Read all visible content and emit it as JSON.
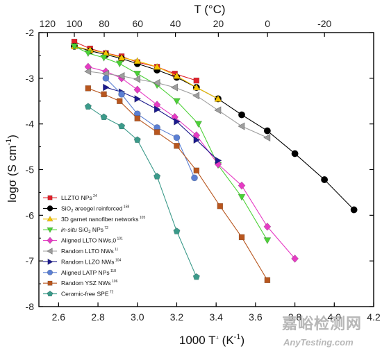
{
  "chart_data": {
    "type": "scatter",
    "xlabel_main": "1000 T",
    "xlabel_sup": "-1",
    "xlabel_unit": " (K",
    "xlabel_unit_sup": "-1",
    "xlabel_end": ")",
    "ylabel_main": "logσ (S cm",
    "ylabel_sup": "-1",
    "ylabel_end": ")",
    "top_label": "T (°C)",
    "xlim": [
      2.5,
      4.2
    ],
    "ylim": [
      -8,
      -2
    ],
    "x_ticks": [
      "2.6",
      "2.8",
      "3.0",
      "3.2",
      "3.4",
      "3.6",
      "3.8",
      "4.0",
      "4.2"
    ],
    "y_ticks": [
      "-2",
      "-3",
      "-4",
      "-5",
      "-6",
      "-7",
      "-8"
    ],
    "top_ticks": [
      "120",
      "100",
      "80",
      "60",
      "40",
      "20",
      "0",
      "-20"
    ],
    "legend_position": "bottom-left",
    "series": [
      {
        "name": "LLZTO NPs",
        "ref": "24",
        "color": "#e0202a",
        "marker": "square",
        "x": [
          2.68,
          2.76,
          2.84,
          2.92,
          3.0,
          3.1,
          3.19,
          3.3
        ],
        "y": [
          -2.2,
          -2.35,
          -2.45,
          -2.52,
          -2.65,
          -2.75,
          -2.9,
          -3.05
        ]
      },
      {
        "name": "SiO",
        "sub": "2",
        "name2": " areogel reinforced",
        "ref": "158",
        "color": "#000000",
        "marker": "circle",
        "x": [
          2.68,
          2.76,
          2.84,
          2.92,
          3.0,
          3.1,
          3.2,
          3.3,
          3.41,
          3.53,
          3.66,
          3.8,
          3.95,
          4.1
        ],
        "y": [
          -2.3,
          -2.4,
          -2.48,
          -2.57,
          -2.68,
          -2.82,
          -2.98,
          -3.2,
          -3.45,
          -3.8,
          -4.15,
          -4.65,
          -5.22,
          -5.88
        ]
      },
      {
        "name": "3D garnet nanofiber networks",
        "ref": "105",
        "color": "#f5c400",
        "marker": "triangle-up",
        "x": [
          2.68,
          2.76,
          2.84,
          2.92,
          3.0,
          3.1,
          3.2,
          3.3,
          3.41
        ],
        "y": [
          -2.3,
          -2.38,
          -2.45,
          -2.55,
          -2.62,
          -2.75,
          -2.95,
          -3.2,
          -3.45
        ]
      },
      {
        "name": "in-situ",
        "italic": true,
        "name2": " SiO",
        "sub": "2",
        "name3": " NPs",
        "ref": "72",
        "color": "#4cd137",
        "marker": "triangle-down",
        "x": [
          2.68,
          2.75,
          2.83,
          2.91,
          3.0,
          3.1,
          3.2,
          3.31,
          3.41,
          3.53,
          3.66
        ],
        "y": [
          -2.3,
          -2.45,
          -2.55,
          -2.68,
          -2.9,
          -3.15,
          -3.5,
          -4.0,
          -4.9,
          -5.6,
          -6.55
        ]
      },
      {
        "name": "Aligned LLTO NWs,0",
        "ref": "101",
        "color": "#e63bc4",
        "marker": "diamond",
        "x": [
          2.75,
          2.84,
          2.92,
          3.0,
          3.1,
          3.19,
          3.3,
          3.41,
          3.53,
          3.66,
          3.8
        ],
        "y": [
          -2.75,
          -2.85,
          -3.0,
          -3.25,
          -3.58,
          -3.85,
          -4.25,
          -4.88,
          -5.35,
          -6.25,
          -6.95
        ]
      },
      {
        "name": "Random LLTO NWs",
        "ref": "11",
        "color": "#9e9e9e",
        "marker": "triangle-left",
        "x": [
          2.75,
          2.84,
          2.92,
          3.0,
          3.1,
          3.19,
          3.3,
          3.41,
          3.53,
          3.66
        ],
        "y": [
          -2.85,
          -2.9,
          -2.95,
          -3.02,
          -3.1,
          -3.2,
          -3.38,
          -3.7,
          -4.05,
          -4.3
        ]
      },
      {
        "name": "Random LLZO NWs",
        "ref": "104",
        "color": "#1b1a8c",
        "marker": "triangle-right",
        "x": [
          2.84,
          2.92,
          3.0,
          3.1,
          3.2,
          3.3,
          3.41
        ],
        "y": [
          -3.2,
          -3.3,
          -3.45,
          -3.68,
          -3.95,
          -4.35,
          -4.8
        ]
      },
      {
        "name": "Aligned LATP  NPs",
        "ref": "118",
        "color": "#5b7fd3",
        "marker": "circle",
        "x": [
          2.84,
          2.92,
          3.0,
          3.1,
          3.2,
          3.29
        ],
        "y": [
          -3.0,
          -3.35,
          -3.78,
          -4.08,
          -4.3,
          -5.18
        ]
      },
      {
        "name": "Random YSZ NWs",
        "ref": "106",
        "color": "#b8561e",
        "marker": "square",
        "x": [
          2.75,
          2.83,
          2.91,
          3.0,
          3.1,
          3.2,
          3.3,
          3.42,
          3.53,
          3.66
        ],
        "y": [
          -3.22,
          -3.35,
          -3.5,
          -3.88,
          -4.18,
          -4.48,
          -5.02,
          -5.8,
          -6.48,
          -7.42
        ]
      },
      {
        "name": "Ceramic-free SPE",
        "ref": "72",
        "color": "#3b9a8a",
        "marker": "pentagon",
        "x": [
          2.75,
          2.83,
          2.92,
          3.0,
          3.1,
          3.2,
          3.3
        ],
        "y": [
          -3.62,
          -3.85,
          -4.05,
          -4.35,
          -5.15,
          -6.35,
          -7.35
        ]
      }
    ]
  },
  "watermark": {
    "cn": "嘉峪检测网",
    "en": "AnyTesting.com",
    "color": "#b7b7b7"
  }
}
